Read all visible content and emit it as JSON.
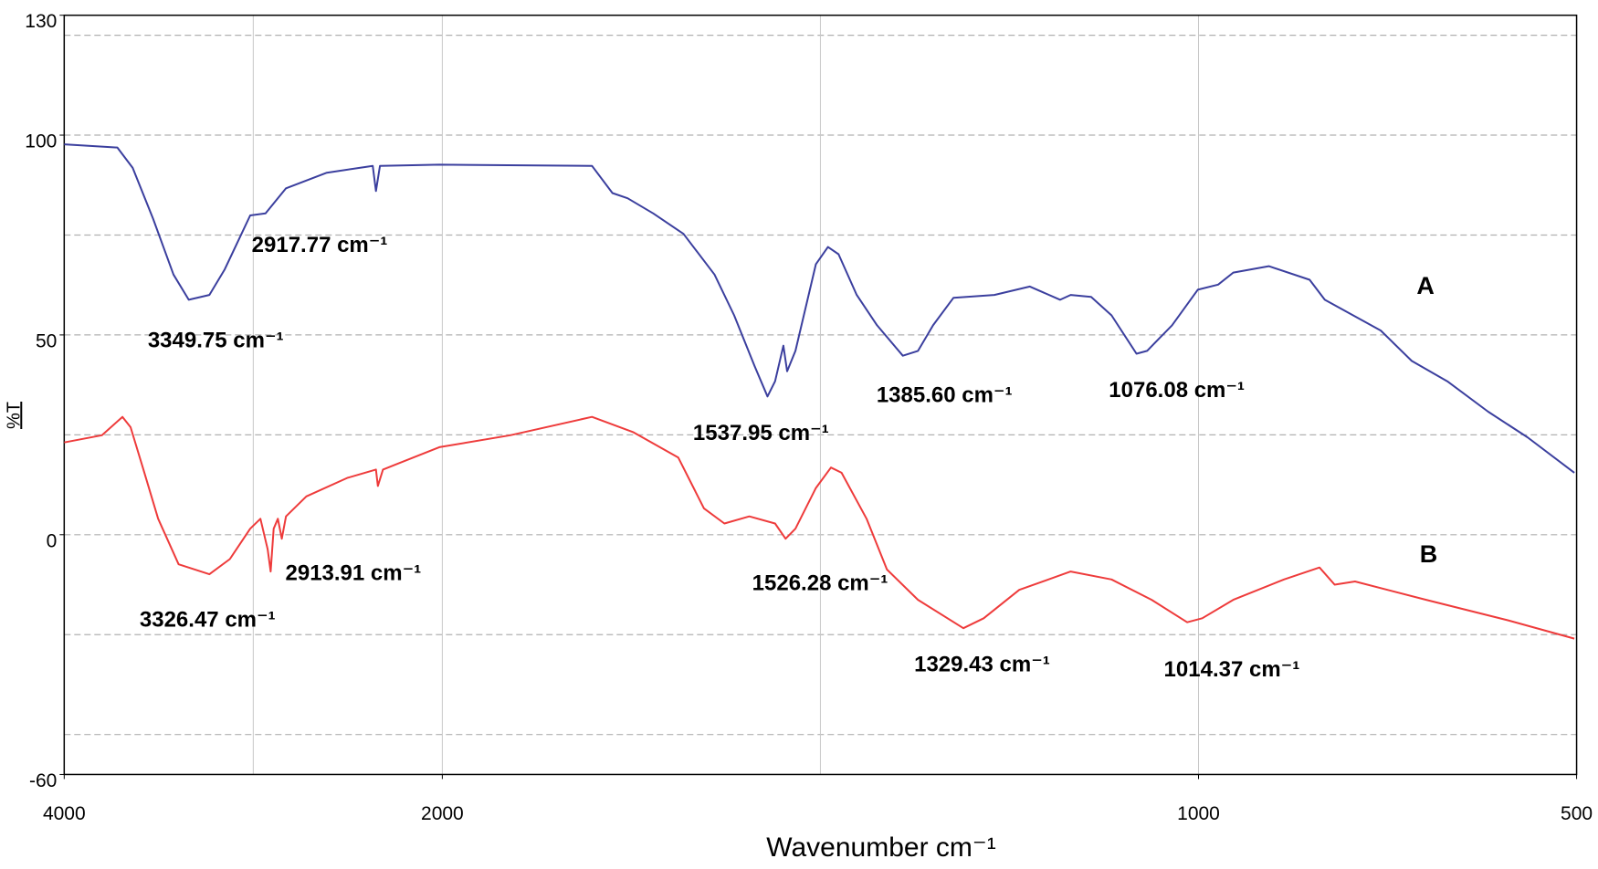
{
  "chart_data": {
    "type": "line",
    "x_label": "Wavenumber cm⁻¹",
    "y_label": "%T",
    "xlim": [
      4000,
      500
    ],
    "xticks": [
      4000,
      2000,
      1000,
      500
    ],
    "xgrid": [
      3000,
      2000,
      1500,
      1000
    ],
    "ylim": [
      -60,
      130
    ],
    "yticks": [
      130,
      100,
      50,
      0,
      -60
    ],
    "ygrid": [
      125,
      100,
      75,
      50,
      25,
      0,
      -25,
      -50
    ],
    "grid": true,
    "series": [
      {
        "name": "A",
        "color": "#3b3f9e",
        "x": [
          4000,
          3719,
          3638,
          3530,
          3422,
          3341,
          3232,
          3151,
          3016,
          2935,
          2827,
          2611,
          2368,
          2351,
          2330,
          2016,
          1802,
          1775,
          1755,
          1721,
          1681,
          1640,
          1614,
          1587,
          1570,
          1560,
          1549,
          1544,
          1533,
          1506,
          1490,
          1476,
          1452,
          1425,
          1391,
          1371,
          1351,
          1324,
          1270,
          1223,
          1183,
          1169,
          1142,
          1115,
          1082,
          1068,
          1035,
          1001,
          974,
          954,
          907,
          853,
          833,
          759,
          718,
          671,
          617,
          565,
          503
        ],
        "values": [
          97.7,
          96.9,
          91.8,
          79.1,
          65.1,
          58.8,
          60,
          66.4,
          79.9,
          80.4,
          86.7,
          90.6,
          92.3,
          86,
          92.3,
          92.6,
          92.3,
          85.5,
          84.2,
          80.4,
          75.3,
          65.1,
          54.9,
          42.2,
          34.6,
          38.4,
          47.3,
          40.9,
          46,
          67.7,
          72,
          70.2,
          60,
          52.4,
          44.8,
          46,
          52.4,
          59.3,
          60,
          62.1,
          58.8,
          60,
          59.5,
          54.9,
          45.3,
          46,
          52.4,
          61.3,
          62.6,
          65.6,
          67.2,
          63.8,
          58.8,
          51.1,
          43.5,
          38.4,
          30.8,
          24.4,
          15.5
        ]
      },
      {
        "name": "B",
        "color": "#ee3b3b",
        "x": [
          4000,
          3800,
          3692,
          3649,
          3584,
          3503,
          3395,
          3232,
          3124,
          3016,
          2962,
          2924,
          2908,
          2892,
          2870,
          2849,
          2827,
          2719,
          2503,
          2351,
          2341,
          2314,
          2016,
          1910,
          1802,
          1748,
          1688,
          1654,
          1627,
          1594,
          1560,
          1546,
          1533,
          1506,
          1486,
          1472,
          1439,
          1412,
          1371,
          1311,
          1284,
          1237,
          1169,
          1115,
          1062,
          1015,
          995,
          954,
          887,
          840,
          820,
          793,
          699,
          591,
          503
        ],
        "values": [
          23.1,
          24.9,
          29.5,
          26.9,
          16.8,
          4,
          -7.4,
          -9.9,
          -6.1,
          1.5,
          4,
          -3.6,
          -9.2,
          1.5,
          4,
          -1,
          4.6,
          9.6,
          14.2,
          16.3,
          12.2,
          16.3,
          21.9,
          24.9,
          29.5,
          25.7,
          19.3,
          6.6,
          2.8,
          4.6,
          2.8,
          -1,
          1.5,
          11.7,
          16.8,
          15.5,
          4,
          -8.7,
          -16.3,
          -23.4,
          -20.9,
          -13.8,
          -9.2,
          -11.2,
          -16.3,
          -21.9,
          -20.9,
          -16.3,
          -11.2,
          -8.2,
          -12.5,
          -11.7,
          -16.3,
          -21.4,
          -26
        ]
      }
    ],
    "annotations": [
      "2917.77 cm⁻¹",
      "3349.75 cm⁻¹",
      "1537.95 cm⁻¹",
      "1385.60 cm⁻¹",
      "1076.08 cm⁻¹",
      "2913.91 cm⁻¹",
      "3326.47 cm⁻¹",
      "1526.28 cm⁻¹",
      "1329.43 cm⁻¹",
      "1014.37 cm⁻¹"
    ]
  }
}
